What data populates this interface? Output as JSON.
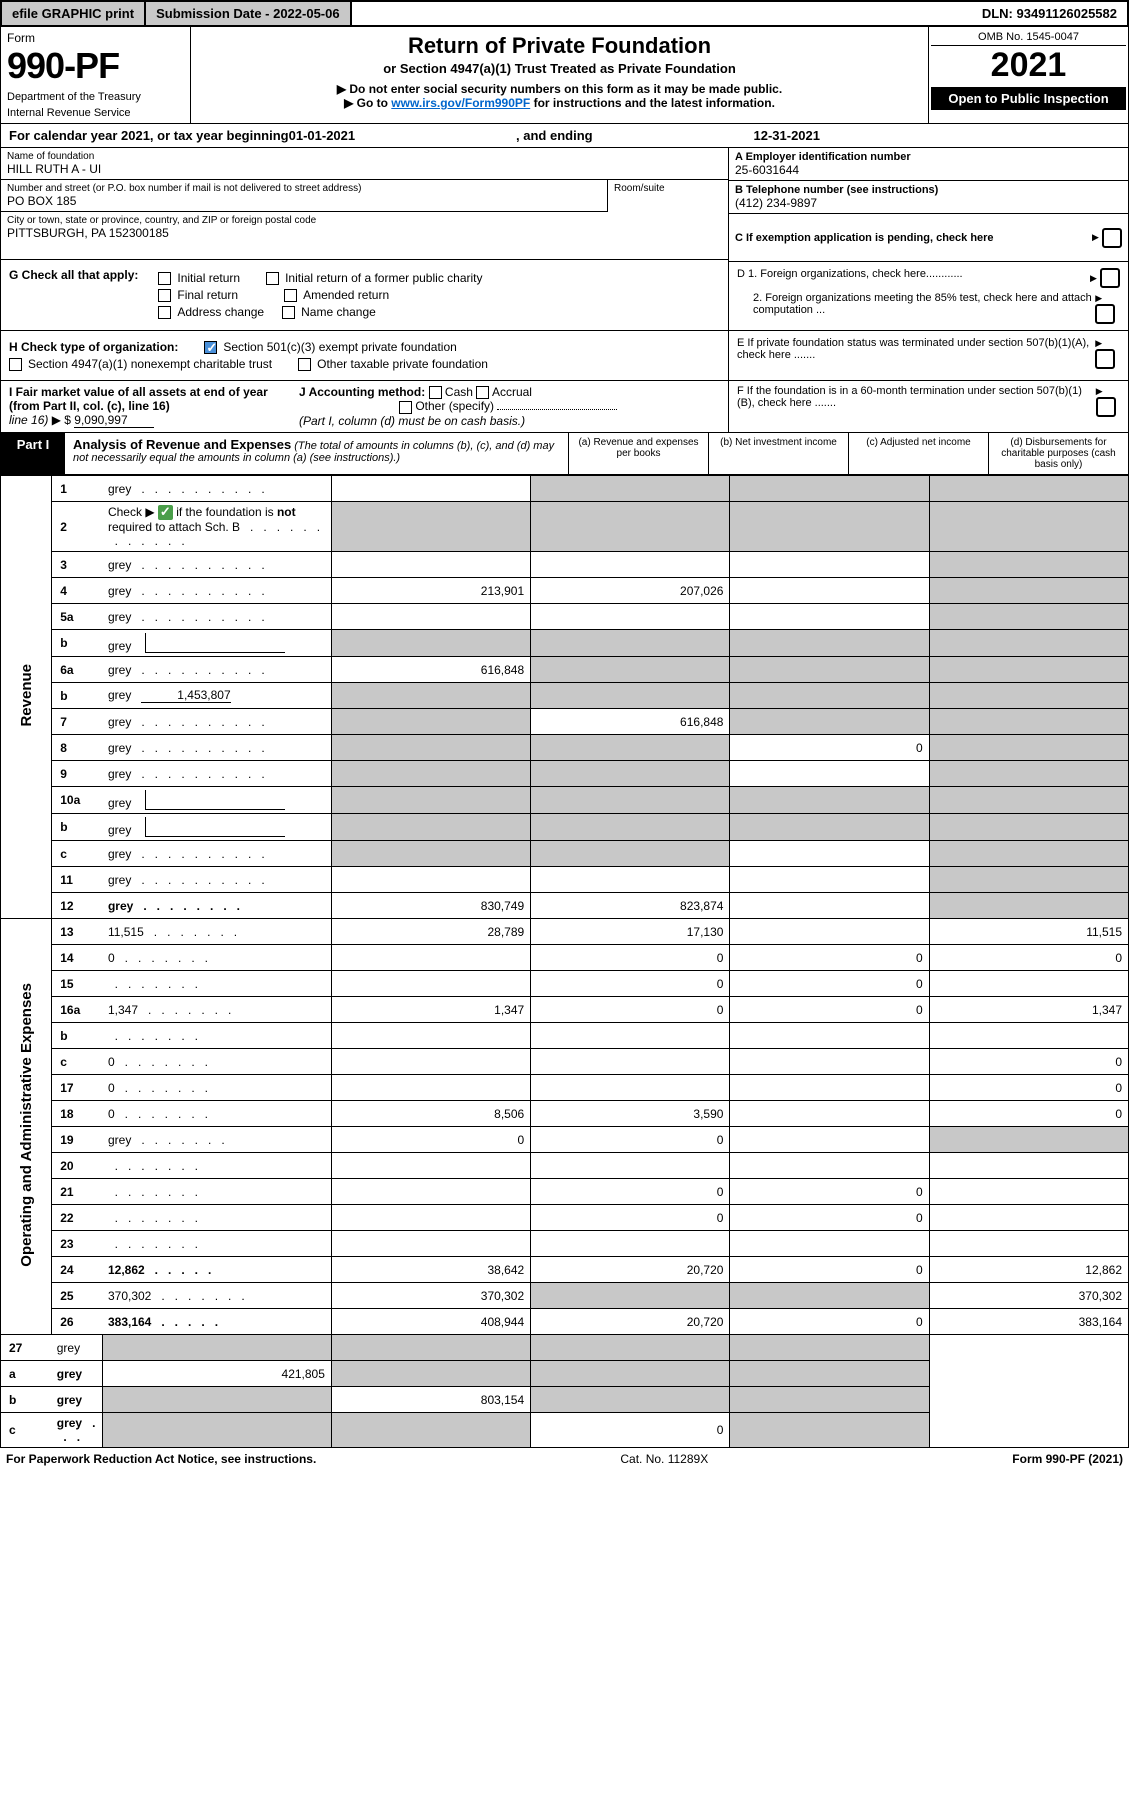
{
  "topbar": {
    "efile": "efile GRAPHIC print",
    "submission": "Submission Date - 2022-05-06",
    "dln": "DLN: 93491126025582"
  },
  "header": {
    "form_word": "Form",
    "form_num": "990-PF",
    "dept": "Department of the Treasury",
    "irs": "Internal Revenue Service",
    "title": "Return of Private Foundation",
    "subtitle": "or Section 4947(a)(1) Trust Treated as Private Foundation",
    "note1": "▶ Do not enter social security numbers on this form as it may be made public.",
    "note2_pre": "▶ Go to ",
    "note2_link": "www.irs.gov/Form990PF",
    "note2_post": " for instructions and the latest information.",
    "omb": "OMB No. 1545-0047",
    "year": "2021",
    "open": "Open to Public Inspection"
  },
  "calyear": {
    "text_pre": "For calendar year 2021, or tax year beginning ",
    "begin": "01-01-2021",
    "mid": " , and ending ",
    "end": "12-31-2021"
  },
  "entity": {
    "name_label": "Name of foundation",
    "name": "HILL RUTH A - UI",
    "addr_label": "Number and street (or P.O. box number if mail is not delivered to street address)",
    "addr": "PO BOX 185",
    "room_label": "Room/suite",
    "city_label": "City or town, state or province, country, and ZIP or foreign postal code",
    "city": "PITTSBURGH, PA  152300185",
    "ein_label": "A Employer identification number",
    "ein": "25-6031644",
    "phone_label": "B Telephone number (see instructions)",
    "phone": "(412) 234-9897",
    "c_label": "C If exemption application is pending, check here"
  },
  "checks": {
    "g_label": "G Check all that apply:",
    "g_opts": [
      "Initial return",
      "Initial return of a former public charity",
      "Final return",
      "Amended return",
      "Address change",
      "Name change"
    ],
    "h_label": "H Check type of organization:",
    "h_opt1": "Section 501(c)(3) exempt private foundation",
    "h_opt2": "Section 4947(a)(1) nonexempt charitable trust",
    "h_opt3": "Other taxable private foundation",
    "i_label": "I Fair market value of all assets at end of year (from Part II, col. (c), line 16)",
    "i_val": "9,090,997",
    "j_label": "J Accounting method:",
    "j_opts": [
      "Cash",
      "Accrual",
      "Other (specify)"
    ],
    "j_note": "(Part I, column (d) must be on cash basis.)",
    "d1": "D 1. Foreign organizations, check here............",
    "d2": "2. Foreign organizations meeting the 85% test, check here and attach computation ...",
    "e": "E  If private foundation status was terminated under section 507(b)(1)(A), check here .......",
    "f": "F  If the foundation is in a 60-month termination under section 507(b)(1)(B), check here ......."
  },
  "part1": {
    "label": "Part I",
    "title": "Analysis of Revenue and Expenses",
    "note": " (The total of amounts in columns (b), (c), and (d) may not necessarily equal the amounts in column (a) (see instructions).)",
    "colA": "(a) Revenue and expenses per books",
    "colB": "(b) Net investment income",
    "colC": "(c) Adjusted net income",
    "colD": "(d) Disbursements for charitable purposes (cash basis only)"
  },
  "sections": {
    "revenue": "Revenue",
    "opex": "Operating and Administrative Expenses"
  },
  "rows": [
    {
      "n": "1",
      "d": "grey",
      "a": "",
      "b": "grey",
      "c": "grey"
    },
    {
      "n": "2",
      "d": "grey",
      "a": "grey",
      "b": "grey",
      "c": "grey",
      "checkmark": true
    },
    {
      "n": "3",
      "d": "grey",
      "a": "",
      "b": "",
      "c": ""
    },
    {
      "n": "4",
      "d": "grey",
      "a": "213,901",
      "b": "207,026",
      "c": ""
    },
    {
      "n": "5a",
      "d": "grey",
      "a": "",
      "b": "",
      "c": ""
    },
    {
      "n": "b",
      "d": "grey",
      "a": "grey",
      "b": "grey",
      "c": "grey",
      "inset": true
    },
    {
      "n": "6a",
      "d": "grey",
      "a": "616,848",
      "b": "grey",
      "c": "grey"
    },
    {
      "n": "b",
      "d": "grey",
      "a": "grey",
      "b": "grey",
      "c": "grey",
      "inset": true,
      "inset_val": "1,453,807"
    },
    {
      "n": "7",
      "d": "grey",
      "a": "grey",
      "b": "616,848",
      "c": "grey"
    },
    {
      "n": "8",
      "d": "grey",
      "a": "grey",
      "b": "grey",
      "c": "0"
    },
    {
      "n": "9",
      "d": "grey",
      "a": "grey",
      "b": "grey",
      "c": ""
    },
    {
      "n": "10a",
      "d": "grey",
      "a": "grey",
      "b": "grey",
      "c": "grey",
      "inset": true
    },
    {
      "n": "b",
      "d": "grey",
      "a": "grey",
      "b": "grey",
      "c": "grey",
      "inset": true
    },
    {
      "n": "c",
      "d": "grey",
      "a": "grey",
      "b": "grey",
      "c": ""
    },
    {
      "n": "11",
      "d": "grey",
      "a": "",
      "b": "",
      "c": ""
    },
    {
      "n": "12",
      "d": "grey",
      "a": "830,749",
      "b": "823,874",
      "c": "",
      "bold": true
    }
  ],
  "rows2": [
    {
      "n": "13",
      "d": "11,515",
      "a": "28,789",
      "b": "17,130",
      "c": ""
    },
    {
      "n": "14",
      "d": "0",
      "a": "",
      "b": "0",
      "c": "0"
    },
    {
      "n": "15",
      "d": "",
      "a": "",
      "b": "0",
      "c": "0"
    },
    {
      "n": "16a",
      "d": "1,347",
      "a": "1,347",
      "b": "0",
      "c": "0"
    },
    {
      "n": "b",
      "d": "",
      "a": "",
      "b": "",
      "c": ""
    },
    {
      "n": "c",
      "d": "0",
      "a": "",
      "b": "",
      "c": ""
    },
    {
      "n": "17",
      "d": "0",
      "a": "",
      "b": "",
      "c": ""
    },
    {
      "n": "18",
      "d": "0",
      "a": "8,506",
      "b": "3,590",
      "c": ""
    },
    {
      "n": "19",
      "d": "grey",
      "a": "0",
      "b": "0",
      "c": ""
    },
    {
      "n": "20",
      "d": "",
      "a": "",
      "b": "",
      "c": ""
    },
    {
      "n": "21",
      "d": "",
      "a": "",
      "b": "0",
      "c": "0"
    },
    {
      "n": "22",
      "d": "",
      "a": "",
      "b": "0",
      "c": "0"
    },
    {
      "n": "23",
      "d": "",
      "a": "",
      "b": "",
      "c": ""
    },
    {
      "n": "24",
      "d": "12,862",
      "a": "38,642",
      "b": "20,720",
      "c": "0",
      "bold": true
    },
    {
      "n": "25",
      "d": "370,302",
      "a": "370,302",
      "b": "grey",
      "c": "grey"
    },
    {
      "n": "26",
      "d": "383,164",
      "a": "408,944",
      "b": "20,720",
      "c": "0",
      "bold": true
    }
  ],
  "rows3": [
    {
      "n": "27",
      "d": "grey",
      "a": "grey",
      "b": "grey",
      "c": "grey"
    },
    {
      "n": "a",
      "d": "grey",
      "a": "421,805",
      "b": "grey",
      "c": "grey",
      "bold": true
    },
    {
      "n": "b",
      "d": "grey",
      "a": "grey",
      "b": "803,154",
      "c": "grey",
      "bold": true
    },
    {
      "n": "c",
      "d": "grey",
      "a": "grey",
      "b": "grey",
      "c": "0",
      "bold": true
    }
  ],
  "footer": {
    "left": "For Paperwork Reduction Act Notice, see instructions.",
    "mid": "Cat. No. 11289X",
    "right": "Form 990-PF (2021)"
  },
  "colors": {
    "grey": "#c8c8c8",
    "link": "#0066cc",
    "check_blue": "#4a90d9",
    "check_green": "#4a9e4a"
  }
}
